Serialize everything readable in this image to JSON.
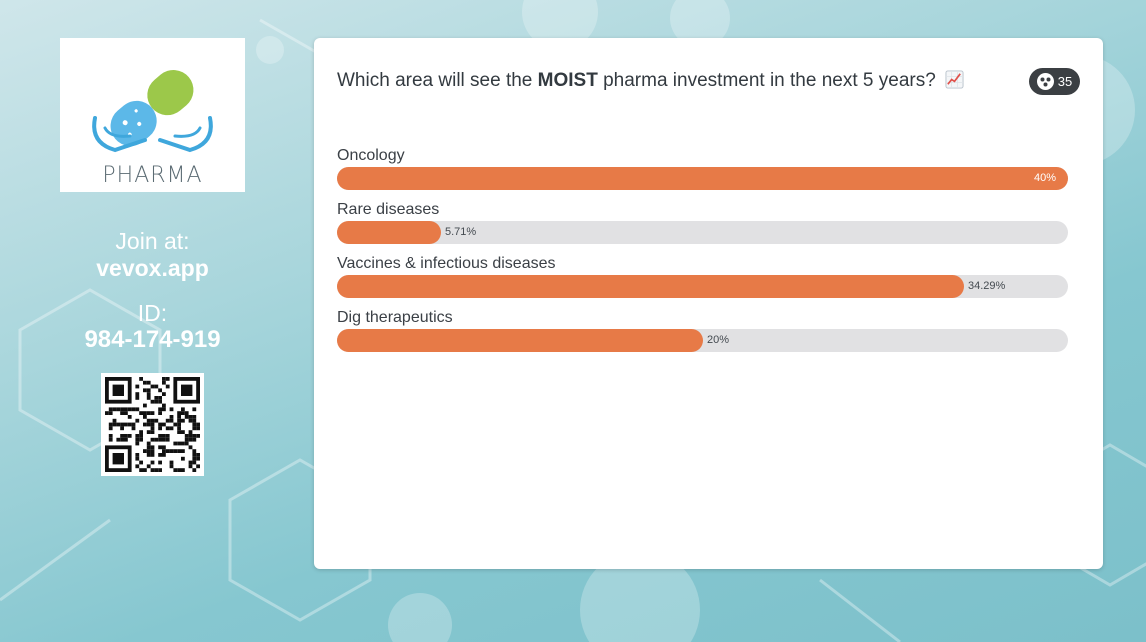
{
  "sidebar": {
    "logo_text": "PHARMA",
    "join_label": "Join at:",
    "join_url": "vevox.app",
    "id_label": "ID:",
    "id_value": "984-174-919"
  },
  "poll": {
    "question_pre": "Which area will see the ",
    "question_bold": "MOIST",
    "question_post": " pharma investment in the next 5 years?",
    "question_emoji": "chart-increasing-icon",
    "responses_count": "35",
    "options": [
      {
        "label": "Oncology",
        "percent_label": "40%",
        "percent": 40
      },
      {
        "label": "Rare diseases",
        "percent_label": "5.71%",
        "percent": 5.71
      },
      {
        "label": "Vaccines & infectious diseases",
        "percent_label": "34.29%",
        "percent": 34.29
      },
      {
        "label": "Dig therapeutics",
        "percent_label": "20%",
        "percent": 20
      }
    ],
    "colors": {
      "bar": "#e77a47",
      "track": "#e1e1e3",
      "badge": "#3b3f43"
    }
  },
  "chart_data": {
    "type": "bar",
    "categories": [
      "Oncology",
      "Rare diseases",
      "Vaccines & infectious diseases",
      "Dig therapeutics"
    ],
    "values": [
      40,
      5.71,
      34.29,
      20
    ],
    "xlim": [
      0,
      40
    ]
  }
}
